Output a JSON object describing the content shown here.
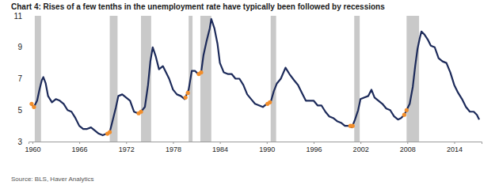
{
  "chart_data": {
    "type": "line",
    "title": "Chart 4: Rises of a few tenths in the unemployment rate have typically been followed by recessions",
    "source": "Source: BLS, Haver Analytics",
    "x": [
      1959.8,
      1960.2,
      1960.6,
      1960.9,
      1961.2,
      1961.4,
      1961.7,
      1962.0,
      1962.5,
      1963.0,
      1963.5,
      1964.0,
      1964.5,
      1965.0,
      1965.5,
      1966.0,
      1966.5,
      1967.0,
      1967.5,
      1968.0,
      1968.5,
      1969.0,
      1969.5,
      1969.9,
      1970.3,
      1970.7,
      1971.0,
      1971.5,
      1972.0,
      1972.5,
      1973.0,
      1973.5,
      1973.9,
      1974.4,
      1974.8,
      1975.1,
      1975.4,
      1975.8,
      1976.2,
      1976.7,
      1977.0,
      1977.5,
      1978.0,
      1978.5,
      1979.0,
      1979.5,
      1980.0,
      1980.4,
      1980.8,
      1981.2,
      1981.6,
      1981.9,
      1982.3,
      1982.7,
      1982.9,
      1983.3,
      1983.7,
      1984.0,
      1984.5,
      1985.0,
      1985.5,
      1986.0,
      1986.5,
      1987.0,
      1987.5,
      1988.0,
      1988.5,
      1989.0,
      1989.5,
      1990.0,
      1990.5,
      1990.9,
      1991.3,
      1991.8,
      1992.4,
      1992.9,
      1993.5,
      1994.0,
      1994.5,
      1995.0,
      1995.5,
      1996.0,
      1996.5,
      1997.0,
      1997.5,
      1998.0,
      1998.5,
      1999.0,
      1999.5,
      2000.0,
      2000.5,
      2000.9,
      2001.3,
      2001.7,
      2002.0,
      2002.5,
      2003.0,
      2003.4,
      2003.8,
      2004.3,
      2004.8,
      2005.3,
      2005.8,
      2006.3,
      2006.8,
      2007.2,
      2007.6,
      2007.9,
      2008.3,
      2008.7,
      2009.0,
      2009.3,
      2009.6,
      2009.8,
      2010.2,
      2010.6,
      2011.0,
      2011.5,
      2012.0,
      2012.5,
      2013.0,
      2013.5,
      2014.0,
      2014.5,
      2015.0,
      2015.5,
      2016.0,
      2016.5,
      2016.9,
      2017.2
    ],
    "values": [
      5.4,
      5.2,
      5.6,
      6.3,
      6.9,
      7.1,
      6.7,
      5.9,
      5.5,
      5.7,
      5.6,
      5.4,
      5.0,
      4.9,
      4.5,
      4.0,
      3.8,
      3.8,
      3.9,
      3.7,
      3.5,
      3.4,
      3.5,
      3.6,
      4.4,
      5.2,
      5.9,
      6.0,
      5.8,
      5.6,
      4.9,
      4.8,
      4.9,
      5.2,
      6.6,
      8.1,
      9.0,
      8.4,
      7.6,
      7.8,
      7.5,
      7.0,
      6.3,
      6.0,
      5.9,
      5.7,
      6.3,
      7.5,
      7.5,
      7.3,
      7.4,
      8.5,
      9.4,
      10.2,
      10.8,
      10.2,
      9.2,
      8.0,
      7.4,
      7.3,
      7.3,
      7.0,
      7.0,
      6.6,
      6.0,
      5.7,
      5.4,
      5.3,
      5.2,
      5.4,
      5.5,
      6.2,
      6.7,
      7.0,
      7.7,
      7.3,
      6.9,
      6.6,
      6.1,
      5.6,
      5.6,
      5.6,
      5.3,
      5.3,
      4.9,
      4.6,
      4.5,
      4.3,
      4.2,
      4.0,
      4.0,
      3.9,
      4.4,
      5.0,
      5.7,
      5.8,
      5.9,
      6.3,
      5.8,
      5.6,
      5.4,
      5.1,
      5.0,
      4.6,
      4.4,
      4.5,
      4.7,
      5.0,
      5.4,
      6.5,
      7.8,
      8.9,
      9.6,
      10.0,
      9.8,
      9.5,
      9.1,
      9.0,
      8.3,
      8.1,
      8.0,
      7.4,
      6.6,
      6.1,
      5.7,
      5.2,
      4.9,
      4.9,
      4.7,
      4.4
    ],
    "color": "#1c2a5a",
    "highlights": {
      "x": [
        1959.9,
        1960.2,
        1969.6,
        1969.9,
        1973.6,
        1973.9,
        1979.6,
        1979.9,
        1981.3,
        1981.6,
        1990.1,
        1990.4,
        2000.7,
        2001.0,
        2007.6,
        2007.9
      ],
      "values": [
        5.4,
        5.2,
        3.5,
        3.6,
        4.8,
        4.9,
        5.8,
        6.1,
        7.3,
        7.4,
        5.4,
        5.5,
        4.0,
        4.0,
        4.7,
        5.0
      ],
      "color": "#f28e2b"
    },
    "recessions": [
      {
        "start": 1960.3,
        "end": 1961.1
      },
      {
        "start": 1969.9,
        "end": 1970.9
      },
      {
        "start": 1973.9,
        "end": 1975.2
      },
      {
        "start": 1980.0,
        "end": 1980.5
      },
      {
        "start": 1981.5,
        "end": 1982.9
      },
      {
        "start": 1990.5,
        "end": 1991.2
      },
      {
        "start": 2001.2,
        "end": 2001.9
      },
      {
        "start": 2007.9,
        "end": 2009.5
      }
    ],
    "xlim": [
      1959.5,
      2017.5
    ],
    "xticks": [
      1960,
      1966,
      1972,
      1978,
      1984,
      1990,
      1996,
      2002,
      2008,
      2014
    ],
    "ylim": [
      3,
      11
    ],
    "yticks": [
      3,
      5,
      7,
      9,
      11
    ],
    "grid": false
  }
}
